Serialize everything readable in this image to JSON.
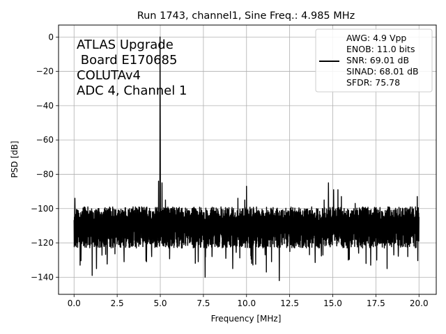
{
  "chart_data": {
    "type": "line",
    "title": "Run 1743, channel1, Sine Freq.: 4.985 MHz",
    "xlabel": "Frequency [MHz]",
    "ylabel": "PSD [dB]",
    "xlim": [
      -0.9,
      21.0
    ],
    "ylim": [
      -150,
      7
    ],
    "x_ticks": [
      0.0,
      2.5,
      5.0,
      7.5,
      10.0,
      12.5,
      15.0,
      17.5,
      20.0
    ],
    "x_tick_labels": [
      "0.0",
      "2.5",
      "5.0",
      "7.5",
      "10.0",
      "12.5",
      "15.0",
      "17.5",
      "20.0"
    ],
    "y_ticks": [
      0,
      -20,
      -40,
      -60,
      -80,
      -100,
      -120,
      -140
    ],
    "y_tick_labels": [
      "0",
      "−20",
      "−40",
      "−60",
      "−80",
      "−100",
      "−120",
      "−140"
    ],
    "grid": true,
    "annotation_lines": [
      "ATLAS Upgrade",
      " Board E170685",
      "COLUTAv4",
      "ADC 4, Channel 1"
    ],
    "legend": {
      "placement": "top-right",
      "lines": [
        "AWG: 4.9 Vpp",
        "ENOB: 11.0 bits",
        "SNR: 69.01 dB",
        "SINAD: 68.01 dB",
        "SFDR: 75.78"
      ]
    },
    "series": [
      {
        "name": "PSD",
        "color": "#000000",
        "noise_floor_db": -110,
        "noise_min_db": -142,
        "noise_max_db": -94,
        "fundamental": {
          "x": 4.985,
          "y": 0
        },
        "spurs": [
          {
            "x": 0.05,
            "y": -94
          },
          {
            "x": 0.35,
            "y": -101
          },
          {
            "x": 0.8,
            "y": -99
          },
          {
            "x": 1.05,
            "y": -99
          },
          {
            "x": 1.4,
            "y": -100
          },
          {
            "x": 1.9,
            "y": -100
          },
          {
            "x": 2.8,
            "y": -101
          },
          {
            "x": 3.5,
            "y": -101
          },
          {
            "x": 4.1,
            "y": -101
          },
          {
            "x": 4.9,
            "y": -84
          },
          {
            "x": 5.1,
            "y": -85
          },
          {
            "x": 5.3,
            "y": -95
          },
          {
            "x": 6.2,
            "y": -101
          },
          {
            "x": 7.7,
            "y": -101
          },
          {
            "x": 8.8,
            "y": -101
          },
          {
            "x": 9.5,
            "y": -94
          },
          {
            "x": 9.9,
            "y": -95
          },
          {
            "x": 10.0,
            "y": -87
          },
          {
            "x": 10.7,
            "y": -101
          },
          {
            "x": 11.8,
            "y": -101
          },
          {
            "x": 12.6,
            "y": -101
          },
          {
            "x": 13.7,
            "y": -101
          },
          {
            "x": 14.5,
            "y": -95
          },
          {
            "x": 14.75,
            "y": -85
          },
          {
            "x": 15.05,
            "y": -89
          },
          {
            "x": 15.3,
            "y": -89
          },
          {
            "x": 15.5,
            "y": -93
          },
          {
            "x": 16.3,
            "y": -97
          },
          {
            "x": 17.0,
            "y": -100
          },
          {
            "x": 17.5,
            "y": -101
          },
          {
            "x": 18.5,
            "y": -101
          },
          {
            "x": 19.5,
            "y": -99
          },
          {
            "x": 19.9,
            "y": -93
          }
        ],
        "dips": [
          {
            "x": 0.15,
            "y": -120
          },
          {
            "x": 0.35,
            "y": -133
          },
          {
            "x": 1.05,
            "y": -139
          },
          {
            "x": 1.3,
            "y": -135
          },
          {
            "x": 2.9,
            "y": -131
          },
          {
            "x": 4.2,
            "y": -131
          },
          {
            "x": 4.5,
            "y": -128
          },
          {
            "x": 5.5,
            "y": -123
          },
          {
            "x": 7.2,
            "y": -131
          },
          {
            "x": 7.6,
            "y": -140
          },
          {
            "x": 8.0,
            "y": -128
          },
          {
            "x": 8.8,
            "y": -129
          },
          {
            "x": 9.2,
            "y": -135
          },
          {
            "x": 10.3,
            "y": -132
          },
          {
            "x": 11.15,
            "y": -137
          },
          {
            "x": 11.45,
            "y": -131
          },
          {
            "x": 11.9,
            "y": -142
          },
          {
            "x": 14.2,
            "y": -123
          },
          {
            "x": 15.9,
            "y": -130
          },
          {
            "x": 16.5,
            "y": -126
          },
          {
            "x": 17.2,
            "y": -133
          },
          {
            "x": 18.15,
            "y": -135
          },
          {
            "x": 19.35,
            "y": -128
          }
        ]
      }
    ]
  }
}
